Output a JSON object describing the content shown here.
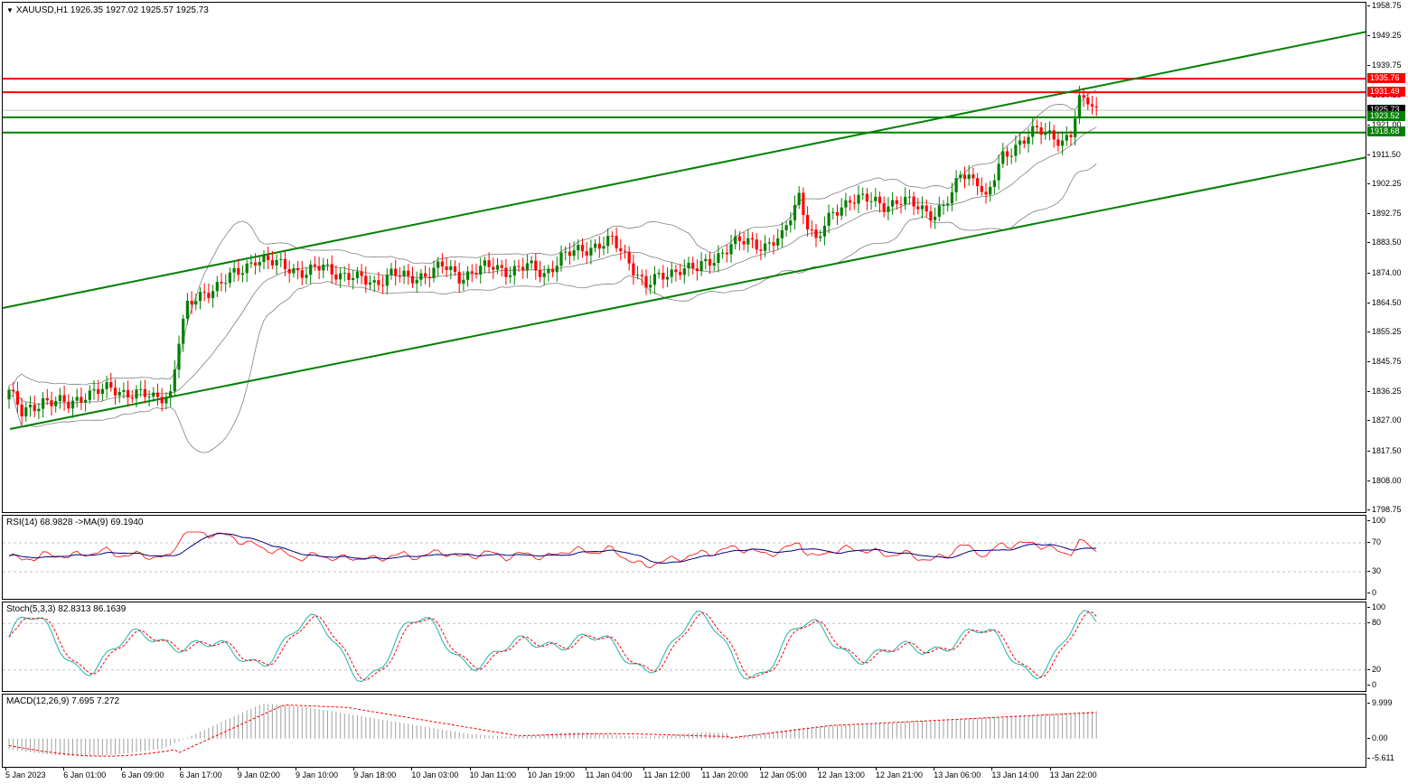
{
  "chart": {
    "symbol_line": "XAUUSD,H1  1926.35 1927.02 1925.57 1925.73",
    "colors": {
      "bull": "#008000",
      "bear": "#ff0000",
      "level_red": "#ff0000",
      "level_green": "#008000",
      "bands": "#808080",
      "grid": "#c0c0c0"
    },
    "price_scale": [
      "1958.75",
      "1949.25",
      "1939.75",
      "1930.25",
      "1921.00",
      "1911.50",
      "1902.25",
      "1892.75",
      "1883.50",
      "1874.00",
      "1864.50",
      "1855.25",
      "1845.75",
      "1836.25",
      "1827.00",
      "1817.50",
      "1808.00",
      "1798.75"
    ],
    "level_badges": [
      {
        "label": "1935.76",
        "kind": "red"
      },
      {
        "label": "1931.49",
        "kind": "red"
      },
      {
        "label": "1925.73",
        "kind": "current"
      },
      {
        "label": "1923.52",
        "kind": "green"
      },
      {
        "label": "1918.68",
        "kind": "green"
      }
    ]
  },
  "rsi": {
    "label": "RSI(14) 68.9828  ->MA(9) 69.1940",
    "scale": [
      "100",
      "70",
      "30",
      "0"
    ]
  },
  "stoch": {
    "label": "Stoch(5,3,3) 82.8313 86.1639",
    "scale": [
      "100",
      "80",
      "20",
      "0"
    ]
  },
  "macd": {
    "label": "MACD(12,26,9) 7.695 7.272",
    "scale": [
      "9.999",
      "0.00",
      "-5.611"
    ]
  },
  "time_axis": [
    "5 Jan 2023",
    "6 Jan 01:00",
    "6 Jan 09:00",
    "6 Jan 17:00",
    "9 Jan 02:00",
    "9 Jan 10:00",
    "9 Jan 18:00",
    "10 Jan 03:00",
    "10 Jan 11:00",
    "10 Jan 19:00",
    "11 Jan 04:00",
    "11 Jan 12:00",
    "11 Jan 20:00",
    "12 Jan 05:00",
    "12 Jan 13:00",
    "12 Jan 21:00",
    "13 Jan 06:00",
    "13 Jan 14:00",
    "13 Jan 22:00"
  ],
  "chart_data": {
    "type": "candlestick",
    "symbol": "XAUUSD",
    "timeframe": "H1",
    "last_ohlc": {
      "open": 1926.35,
      "high": 1927.02,
      "low": 1925.57,
      "close": 1925.73
    },
    "y_range": [
      1798.75,
      1958.75
    ],
    "horizontal_levels": [
      1935.76,
      1931.49,
      1923.52,
      1918.68
    ],
    "close_waypoints": [
      [
        0,
        1837
      ],
      [
        3,
        1829
      ],
      [
        8,
        1834
      ],
      [
        14,
        1832
      ],
      [
        18,
        1836
      ],
      [
        24,
        1837
      ],
      [
        30,
        1836
      ],
      [
        34,
        1834
      ],
      [
        38,
        1836
      ],
      [
        40,
        1853
      ],
      [
        42,
        1863
      ],
      [
        46,
        1868
      ],
      [
        50,
        1871
      ],
      [
        54,
        1874
      ],
      [
        58,
        1879
      ],
      [
        62,
        1877
      ],
      [
        66,
        1876
      ],
      [
        70,
        1874
      ],
      [
        74,
        1876
      ],
      [
        78,
        1874
      ],
      [
        82,
        1872
      ],
      [
        86,
        1871
      ],
      [
        90,
        1874
      ],
      [
        94,
        1872
      ],
      [
        98,
        1874
      ],
      [
        102,
        1876
      ],
      [
        106,
        1873
      ],
      [
        110,
        1875
      ],
      [
        114,
        1876
      ],
      [
        118,
        1875
      ],
      [
        122,
        1876
      ],
      [
        126,
        1874
      ],
      [
        130,
        1879
      ],
      [
        134,
        1881
      ],
      [
        138,
        1883
      ],
      [
        142,
        1884
      ],
      [
        146,
        1878
      ],
      [
        150,
        1870
      ],
      [
        154,
        1873
      ],
      [
        158,
        1876
      ],
      [
        162,
        1875
      ],
      [
        166,
        1879
      ],
      [
        170,
        1883
      ],
      [
        174,
        1884
      ],
      [
        178,
        1883
      ],
      [
        182,
        1885
      ],
      [
        186,
        1899
      ],
      [
        188,
        1890
      ],
      [
        190,
        1884
      ],
      [
        194,
        1893
      ],
      [
        198,
        1898
      ],
      [
        202,
        1897
      ],
      [
        206,
        1896
      ],
      [
        210,
        1897
      ],
      [
        214,
        1895
      ],
      [
        218,
        1893
      ],
      [
        222,
        1898
      ],
      [
        224,
        1906
      ],
      [
        228,
        1904
      ],
      [
        230,
        1897
      ],
      [
        234,
        1911
      ],
      [
        238,
        1916
      ],
      [
        242,
        1919
      ],
      [
        246,
        1918
      ],
      [
        248,
        1916
      ],
      [
        250,
        1918
      ],
      [
        252,
        1928
      ],
      [
        254,
        1929
      ],
      [
        256,
        1926
      ]
    ],
    "rsi_value": 68.9828,
    "rsi_ma": 69.194,
    "stoch_k": 82.8313,
    "stoch_d": 86.1639,
    "macd_value": 7.695,
    "macd_signal": 7.272
  }
}
